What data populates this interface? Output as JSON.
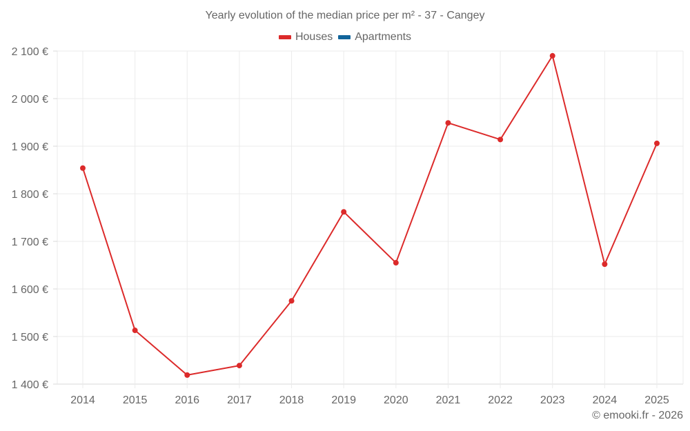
{
  "header": {
    "title": "Yearly evolution of the median price per m² - 37 - Cangey"
  },
  "legend": [
    {
      "label": "Houses",
      "color": "#dc2a2a"
    },
    {
      "label": "Apartments",
      "color": "#11659b"
    }
  ],
  "footer": {
    "credit": "© emooki.fr - 2026"
  },
  "chart_data": {
    "type": "line",
    "title": "Yearly evolution of the median price per m² - 37 - Cangey",
    "xlabel": "",
    "ylabel": "",
    "categories": [
      "2014",
      "2015",
      "2016",
      "2017",
      "2018",
      "2019",
      "2020",
      "2021",
      "2022",
      "2023",
      "2024",
      "2025"
    ],
    "series": [
      {
        "name": "Houses",
        "color": "#dc2a2a",
        "values": [
          1854,
          1513,
          1419,
          1439,
          1575,
          1762,
          1655,
          1949,
          1914,
          2090,
          1652,
          1906
        ]
      },
      {
        "name": "Apartments",
        "color": "#11659b",
        "values": []
      }
    ],
    "ylim": [
      1400,
      2100
    ],
    "yticks": [
      1400,
      1500,
      1600,
      1700,
      1800,
      1900,
      2000,
      2100
    ],
    "ytick_labels": [
      "1 400 €",
      "1 500 €",
      "1 600 €",
      "1 700 €",
      "1 800 €",
      "1 900 €",
      "2 000 €",
      "2 100 €"
    ],
    "grid": true,
    "legend_position": "top"
  }
}
